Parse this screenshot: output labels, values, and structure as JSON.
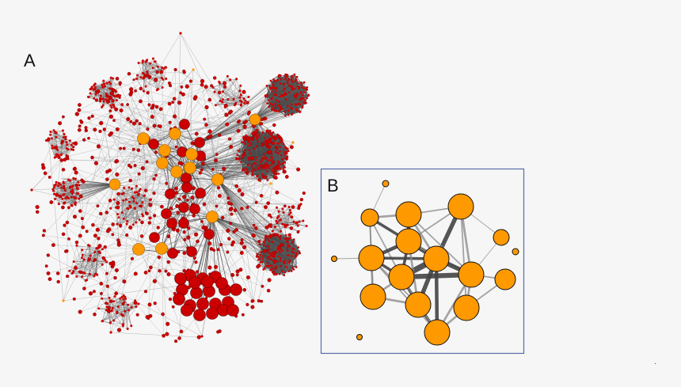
{
  "panels": {
    "a": {
      "label": "A"
    },
    "b": {
      "label": "B"
    }
  },
  "colors": {
    "background": "#f6f6f6",
    "hub_node": "#ff9900",
    "member_node": "#cc0000",
    "node_stroke": "#222222",
    "edge_light": "#999999",
    "edge_dark": "#444444",
    "inset_border": "#5a6aa8"
  },
  "footnote": "."
}
